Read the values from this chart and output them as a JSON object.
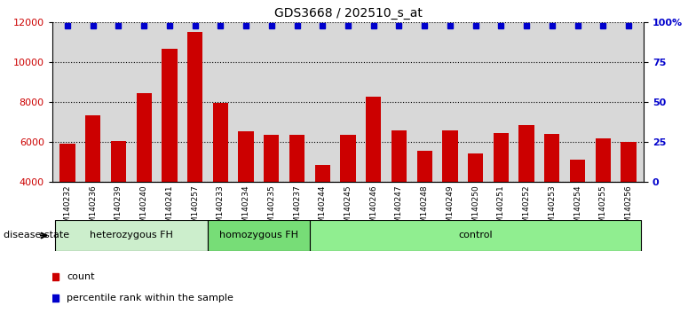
{
  "title": "GDS3668 / 202510_s_at",
  "samples": [
    "GSM140232",
    "GSM140236",
    "GSM140239",
    "GSM140240",
    "GSM140241",
    "GSM140257",
    "GSM140233",
    "GSM140234",
    "GSM140235",
    "GSM140237",
    "GSM140244",
    "GSM140245",
    "GSM140246",
    "GSM140247",
    "GSM140248",
    "GSM140249",
    "GSM140250",
    "GSM140251",
    "GSM140252",
    "GSM140253",
    "GSM140254",
    "GSM140255",
    "GSM140256"
  ],
  "counts": [
    5900,
    7350,
    6050,
    8450,
    10650,
    11500,
    7950,
    6550,
    6350,
    6350,
    4850,
    6350,
    8250,
    6600,
    5550,
    6600,
    5450,
    6450,
    6850,
    6400,
    5100,
    6200,
    6000
  ],
  "groups": [
    {
      "label": "heterozygous FH",
      "start": 0,
      "end": 6,
      "color": "#90EE90"
    },
    {
      "label": "homozygous FH",
      "start": 6,
      "end": 10,
      "color": "#66DD66"
    },
    {
      "label": "control",
      "start": 10,
      "end": 23,
      "color": "#90EE90"
    }
  ],
  "bar_color": "#CC0000",
  "dot_color": "#0000CC",
  "ylim_left": [
    4000,
    12000
  ],
  "ylim_right": [
    0,
    100
  ],
  "yticks_left": [
    4000,
    6000,
    8000,
    10000,
    12000
  ],
  "yticks_right": [
    0,
    25,
    50,
    75,
    100
  ],
  "background_color": "#FFFFFF",
  "plot_bg_color": "#D8D8D8",
  "grid_color": "#000000",
  "label_color_left": "#CC0000",
  "label_color_right": "#0000CC",
  "group_dividers": [
    6,
    10
  ],
  "disease_state_label": "disease state"
}
